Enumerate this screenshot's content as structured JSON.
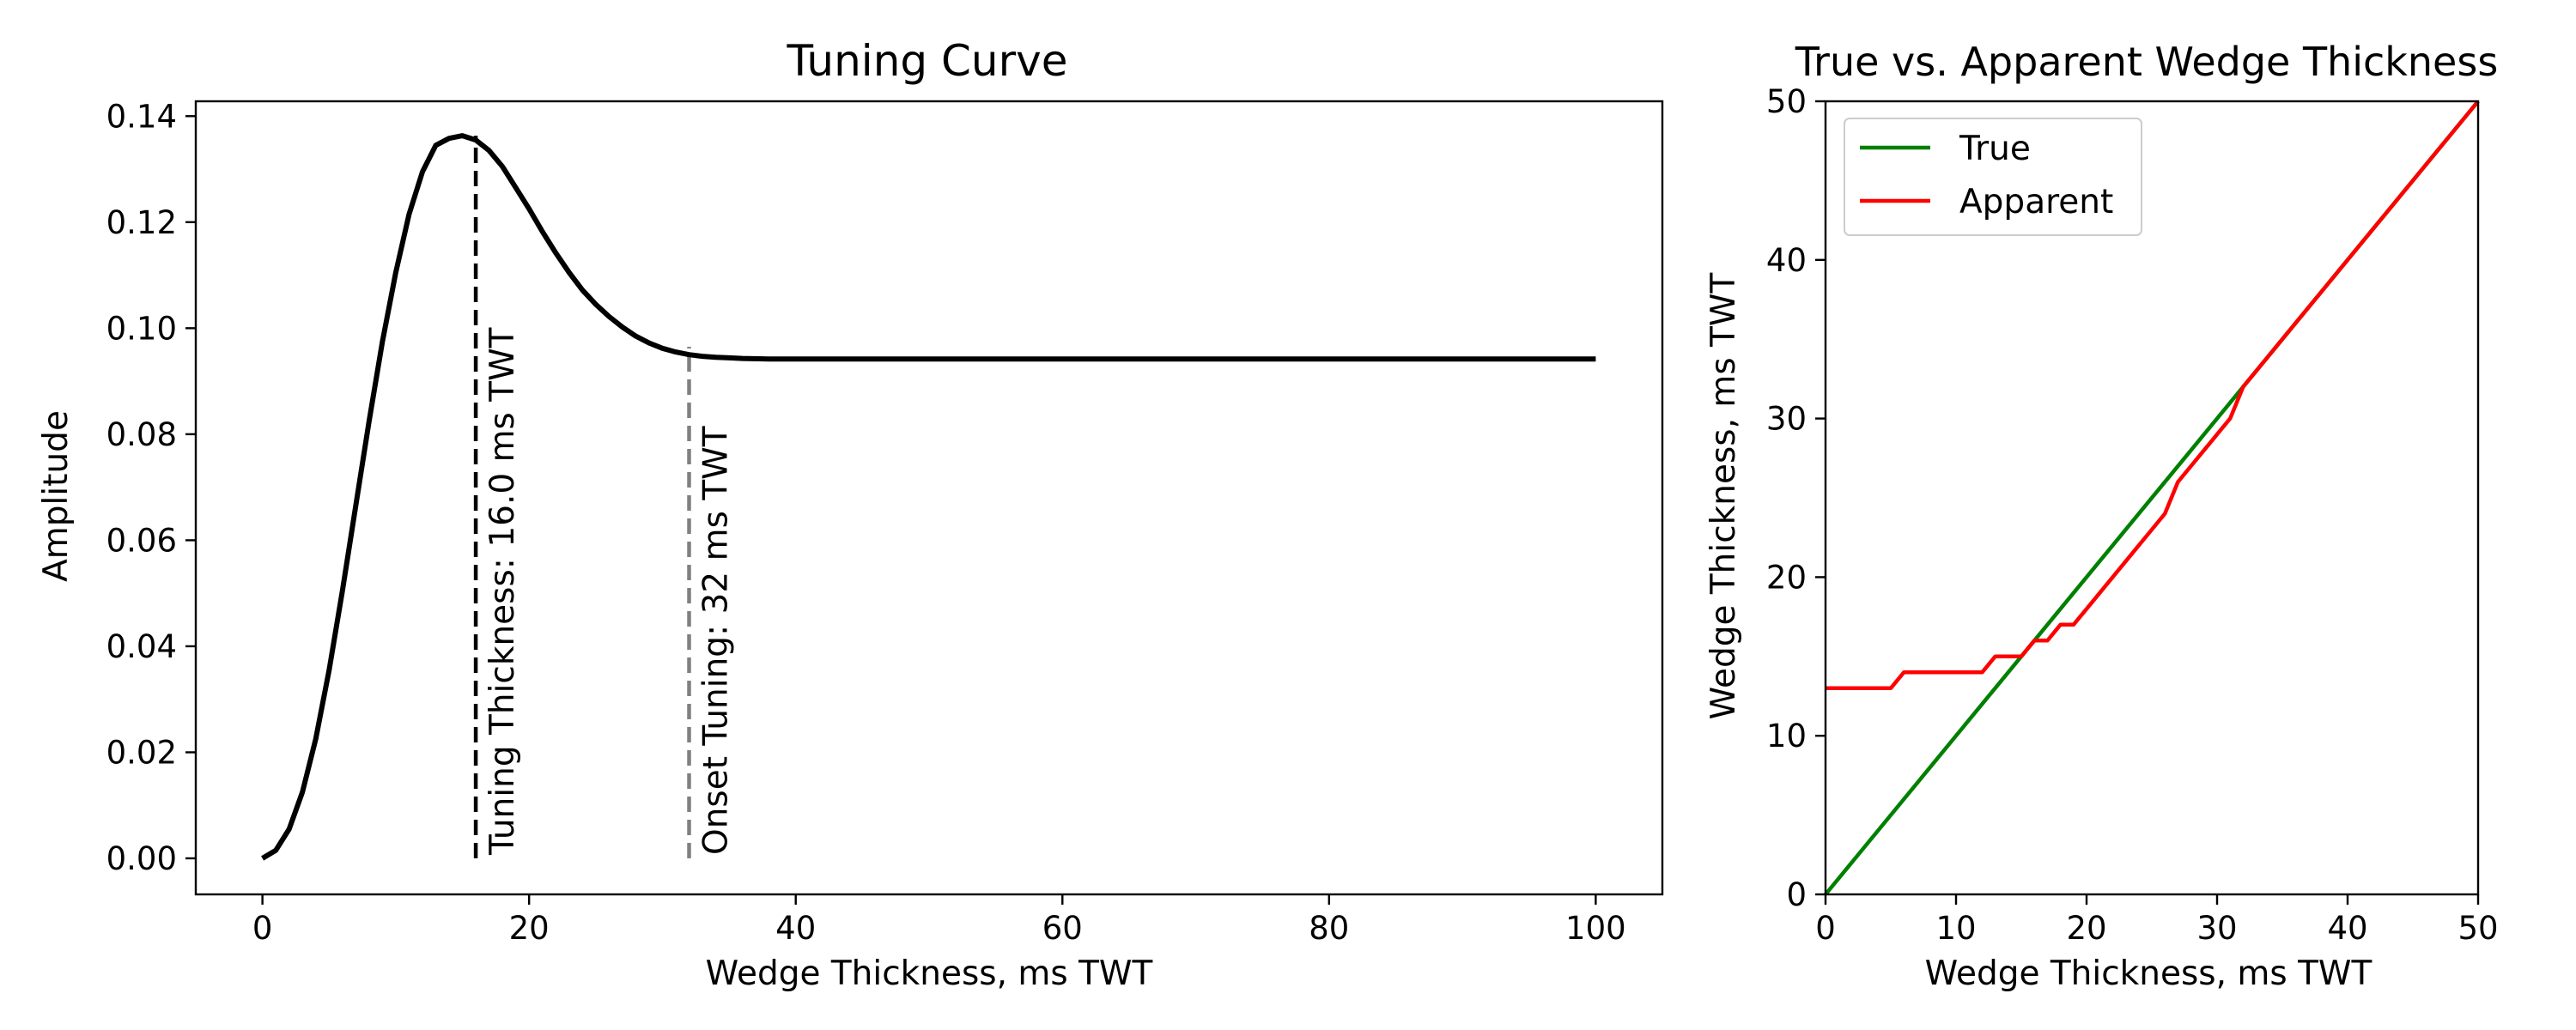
{
  "chart_data": [
    {
      "type": "line",
      "title": "Tuning Curve",
      "xlabel": "Wedge Thickness, ms TWT",
      "ylabel": "Amplitude",
      "xlim": [
        -5,
        105
      ],
      "ylim": [
        -0.0068,
        0.1428
      ],
      "xticks": [
        0,
        20,
        40,
        60,
        80,
        100
      ],
      "yticks": [
        0.0,
        0.02,
        0.04,
        0.06,
        0.08,
        0.1,
        0.12,
        0.14
      ],
      "ytick_labels": [
        "0.00",
        "0.02",
        "0.04",
        "0.06",
        "0.08",
        "0.10",
        "0.12",
        "0.14"
      ],
      "series": [
        {
          "color": "#000000",
          "x": [
            0,
            1,
            2,
            3,
            4,
            5,
            6,
            7,
            8,
            9,
            10,
            11,
            12,
            13,
            14,
            15,
            16,
            17,
            18,
            19,
            20,
            21,
            22,
            23,
            24,
            25,
            26,
            27,
            28,
            29,
            30,
            31,
            32,
            33,
            34,
            35,
            36,
            38,
            40,
            45,
            50,
            60,
            70,
            80,
            90,
            100
          ],
          "y": [
            0.0,
            0.0015,
            0.0055,
            0.0125,
            0.0225,
            0.0355,
            0.0505,
            0.0665,
            0.0825,
            0.0975,
            0.1105,
            0.1215,
            0.1295,
            0.1345,
            0.1358,
            0.1363,
            0.1355,
            0.1335,
            0.1305,
            0.1265,
            0.1225,
            0.1182,
            0.1142,
            0.1105,
            0.1072,
            0.1045,
            0.1022,
            0.1002,
            0.0985,
            0.0972,
            0.0962,
            0.0955,
            0.095,
            0.0947,
            0.0945,
            0.0944,
            0.0943,
            0.0942,
            0.0942,
            0.0942,
            0.0942,
            0.0942,
            0.0942,
            0.0942,
            0.0942,
            0.0942
          ]
        }
      ],
      "annotations": [
        {
          "x": 16,
          "y_top": 0.1363,
          "color": "#000000",
          "label": "Tuning Thickness: 16.0 ms TWT"
        },
        {
          "x": 32,
          "y_top": 0.0965,
          "color": "#808080",
          "label": "Onset Tuning: 32 ms TWT"
        }
      ]
    },
    {
      "type": "line",
      "title": "True vs. Apparent Wedge Thickness",
      "xlabel": "Wedge Thickness, ms TWT",
      "ylabel": "Wedge Thickness, ms TWT",
      "xlim": [
        0,
        50
      ],
      "ylim": [
        0,
        50
      ],
      "xticks": [
        0,
        10,
        20,
        30,
        40,
        50
      ],
      "yticks": [
        0,
        10,
        20,
        30,
        40,
        50
      ],
      "legend": "top-left",
      "series": [
        {
          "name": "True",
          "color": "#008000",
          "x": [
            0,
            50
          ],
          "y": [
            0,
            50
          ]
        },
        {
          "name": "Apparent",
          "color": "#ff0000",
          "x": [
            0,
            1,
            2,
            3,
            4,
            5,
            6,
            7,
            8,
            9,
            10,
            11,
            12,
            13,
            14,
            15,
            16,
            17,
            18,
            19,
            20,
            21,
            22,
            23,
            24,
            25,
            26,
            27,
            28,
            29,
            30,
            31,
            32,
            33,
            34,
            35,
            36,
            37,
            38,
            39,
            40,
            41,
            42,
            43,
            44,
            45,
            46,
            47,
            48,
            49,
            50
          ],
          "y": [
            13,
            13,
            13,
            13,
            13,
            13,
            14,
            14,
            14,
            14,
            14,
            14,
            14,
            15,
            15,
            15,
            16,
            16,
            17,
            17,
            18,
            19,
            20,
            21,
            22,
            23,
            24,
            26,
            27,
            28,
            29,
            30,
            32,
            33,
            34,
            35,
            36,
            37,
            38,
            39,
            40,
            41,
            42,
            43,
            44,
            45,
            46,
            47,
            48,
            49,
            50
          ]
        }
      ]
    }
  ]
}
